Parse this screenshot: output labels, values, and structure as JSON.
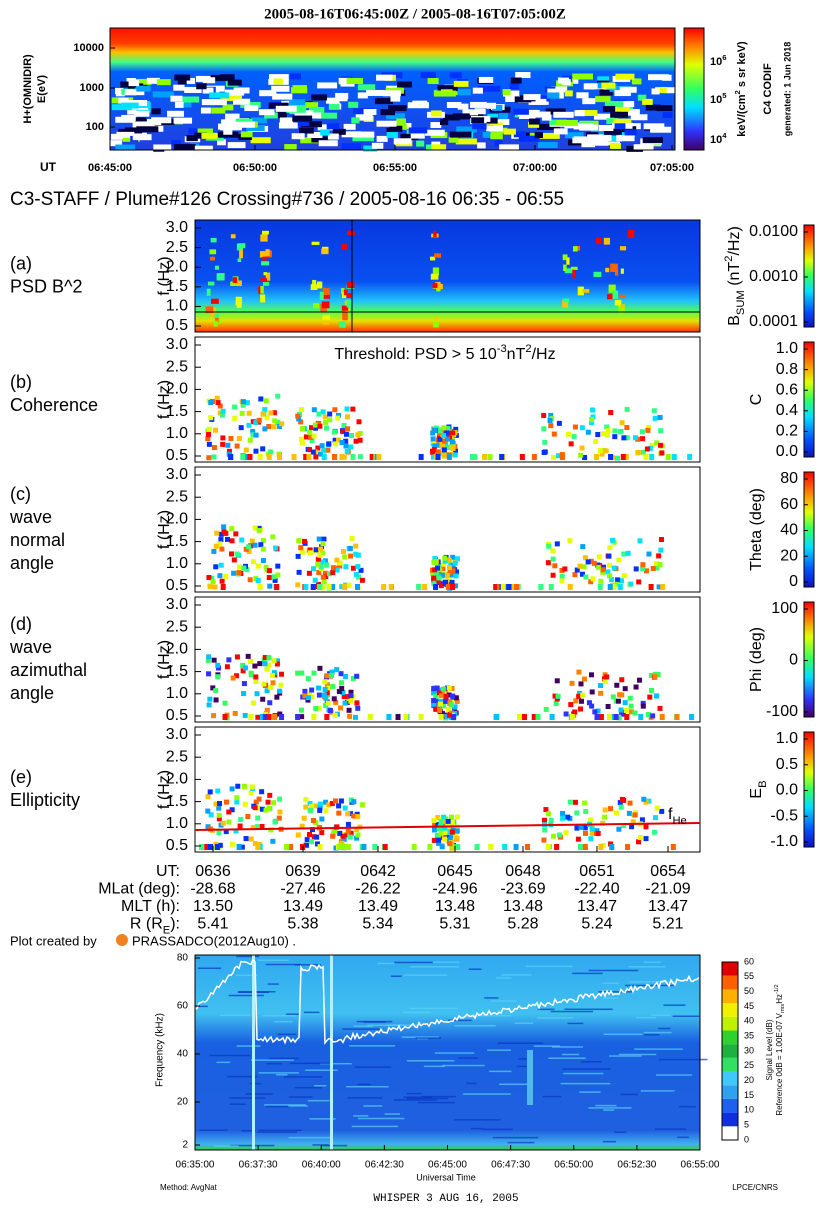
{
  "codif": {
    "title": "2005-08-16T06:45:00Z / 2005-08-16T07:05:00Z",
    "ylabel": [
      "H+(OMNIDIR)",
      "E(eV)"
    ],
    "yticks": [
      "10000",
      "1000",
      "100"
    ],
    "cbar_ticks": [
      [
        {
          "t": "10"
        },
        {
          "t": "6",
          "k": "sup"
        }
      ],
      [
        {
          "t": "10"
        },
        {
          "t": "5",
          "k": "sup"
        }
      ],
      [
        {
          "t": "10"
        },
        {
          "t": "4",
          "k": "sup"
        }
      ]
    ],
    "cbar_label": [
      {
        "t": "keV/(cm"
      },
      {
        "t": "2",
        "k": "sup"
      },
      {
        "t": " s sr keV)"
      }
    ],
    "instrument": "C4 CODIF",
    "generated": "generated: 1 Jun 2018",
    "ut_label": "UT",
    "xticks": [
      "06:45:00",
      "06:50:00",
      "06:55:00",
      "07:00:00",
      "07:05:00"
    ]
  },
  "staff": {
    "title": "C3-STAFF /  Plume#126  Crossing#736 / 2005-08-16 06:35 - 06:55",
    "ylabel": "f (Hz)",
    "panels": [
      {
        "label": [
          "(a)",
          "PSD B^2"
        ],
        "yticks": [
          "3.0",
          "2.5",
          "2.0",
          "1.5",
          "1.0",
          "0.5"
        ],
        "cbar_label": [
          {
            "t": "B"
          },
          {
            "t": "SUM",
            "k": "sub"
          },
          {
            "t": " (nT"
          },
          {
            "t": "2",
            "k": "sup"
          },
          {
            "t": "/Hz)"
          }
        ],
        "cbar_ticks": [
          "0.0100",
          "0.0010",
          "0.0001"
        ]
      },
      {
        "label": [
          "(b)",
          "Coherence"
        ],
        "yticks": [
          "3.0",
          "2.5",
          "2.0",
          "1.5",
          "1.0",
          "0.5"
        ],
        "annotation": [
          {
            "t": "Threshold: PSD > 5 10"
          },
          {
            "t": "-3",
            "k": "sup"
          },
          {
            "t": "nT"
          },
          {
            "t": "2",
            "k": "sup"
          },
          {
            "t": "/Hz"
          }
        ],
        "cbar_label": [
          {
            "t": "C"
          }
        ],
        "cbar_ticks": [
          "1.0",
          "0.8",
          "0.6",
          "0.4",
          "0.2",
          "0.0"
        ]
      },
      {
        "label": [
          "(c)",
          "wave",
          "normal",
          "angle"
        ],
        "yticks": [
          "3.0",
          "2.5",
          "2.0",
          "1.5",
          "1.0",
          "0.5"
        ],
        "cbar_label": [
          {
            "t": "Theta (deg)"
          }
        ],
        "cbar_ticks": [
          "80",
          "60",
          "40",
          "20",
          "0"
        ]
      },
      {
        "label": [
          "(d)",
          "wave",
          "azimuthal",
          "angle"
        ],
        "yticks": [
          "3.0",
          "2.5",
          "2.0",
          "1.5",
          "1.0",
          "0.5"
        ],
        "cbar_label": [
          {
            "t": "Phi (deg)"
          }
        ],
        "cbar_ticks": [
          "100",
          "0",
          "-100"
        ]
      },
      {
        "label": [
          "(e)",
          "Ellipticity"
        ],
        "yticks": [
          "3.0",
          "2.5",
          "2.0",
          "1.5",
          "1.0",
          "0.5"
        ],
        "annotation": [
          {
            "t": "f"
          },
          {
            "t": "He",
            "k": "sub"
          }
        ],
        "cbar_label": [
          {
            "t": "E"
          },
          {
            "t": "B",
            "k": "sub"
          }
        ],
        "cbar_ticks": [
          "1.0",
          "0.5",
          "0.0",
          "-0.5",
          "-1.0"
        ]
      }
    ],
    "ephemeris": [
      {
        "label": [
          {
            "t": "UT:"
          }
        ],
        "values": [
          "0636",
          "0639",
          "0642",
          "0645",
          "0648",
          "0651",
          "0654"
        ]
      },
      {
        "label": [
          {
            "t": "MLat (deg):"
          }
        ],
        "values": [
          "-28.68",
          "-27.46",
          "-26.22",
          "-24.96",
          "-23.69",
          "-22.40",
          "-21.09"
        ]
      },
      {
        "label": [
          {
            "t": "MLT (h):"
          }
        ],
        "values": [
          "13.50",
          "13.49",
          "13.49",
          "13.48",
          "13.48",
          "13.47",
          "13.47"
        ]
      },
      {
        "label": [
          {
            "t": "R (R"
          },
          {
            "t": "E",
            "k": "sub"
          },
          {
            "t": "):"
          }
        ],
        "values": [
          "5.41",
          "5.38",
          "5.34",
          "5.31",
          "5.28",
          "5.24",
          "5.21"
        ]
      }
    ],
    "credit_prefix": "Plot created by",
    "credit": "PRASSADCO(2012Aug10) ."
  },
  "whisper": {
    "ylabel": "Frequency (kHz)",
    "yticks": [
      "80",
      "60",
      "40",
      "20",
      "2"
    ],
    "xticks": [
      "06:35:00",
      "06:37:30",
      "06:40:00",
      "06:42:30",
      "06:45:00",
      "06:47:30",
      "06:50:00",
      "06:52:30",
      "06:55:00"
    ],
    "xlabel": "Universal Time",
    "cbar_ticks": [
      "60",
      "55",
      "50",
      "45",
      "40",
      "35",
      "30",
      "25",
      "20",
      "15",
      "10",
      "5",
      "0"
    ],
    "cbar_label": "Signal Level (dB)",
    "cbar_ref": [
      {
        "t": "Reference 0dB = 1.00E-07 V"
      },
      {
        "t": "rms",
        "k": "sub"
      },
      {
        "t": "Hz"
      },
      {
        "t": "-1/2",
        "k": "sup"
      }
    ],
    "method": "Method: AvgNat",
    "lab": "LPCE/CNRS",
    "footer": "WHISPER 3    AUG 16, 2005"
  }
}
